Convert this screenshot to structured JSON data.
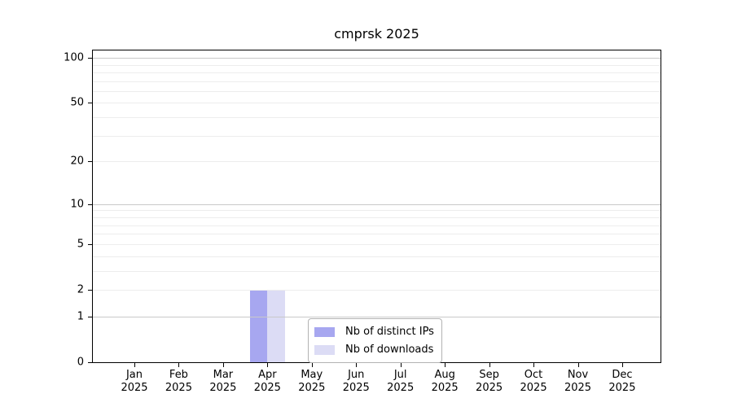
{
  "chart_data": {
    "type": "bar",
    "title": "cmprsk 2025",
    "categories": [
      "Jan 2025",
      "Feb 2025",
      "Mar 2025",
      "Apr 2025",
      "May 2025",
      "Jun 2025",
      "Jul 2025",
      "Aug 2025",
      "Sep 2025",
      "Oct 2025",
      "Nov 2025",
      "Dec 2025"
    ],
    "series": [
      {
        "name": "Nb of distinct IPs",
        "color": "#a7a7f0",
        "values": [
          0,
          0,
          0,
          2,
          0,
          0,
          0,
          0,
          0,
          0,
          0,
          0
        ]
      },
      {
        "name": "Nb of downloads",
        "color": "#dcdcf5",
        "values": [
          0,
          0,
          0,
          2,
          0,
          0,
          0,
          0,
          0,
          0,
          0,
          0
        ]
      }
    ],
    "yscale": "log1p",
    "ylim": [
      0,
      112
    ],
    "yticks": [
      0,
      1,
      2,
      5,
      10,
      20,
      50,
      100
    ],
    "major_gridlines": [
      1,
      10,
      100
    ],
    "minor_gridlines": [
      2,
      3,
      4,
      5,
      6,
      7,
      8,
      9,
      20,
      30,
      40,
      50,
      60,
      70,
      80,
      90
    ],
    "xlabel": "",
    "ylabel": "",
    "legend_position": "lower center",
    "grid": "on"
  },
  "style": {
    "bar_series_1_color": "#a7a7f0",
    "bar_series_2_color": "#dcdcf5",
    "major_grid_color": "#c9c9c9",
    "minor_grid_color": "#ededed",
    "spine_color": "#000000",
    "background_color": "#ffffff"
  }
}
